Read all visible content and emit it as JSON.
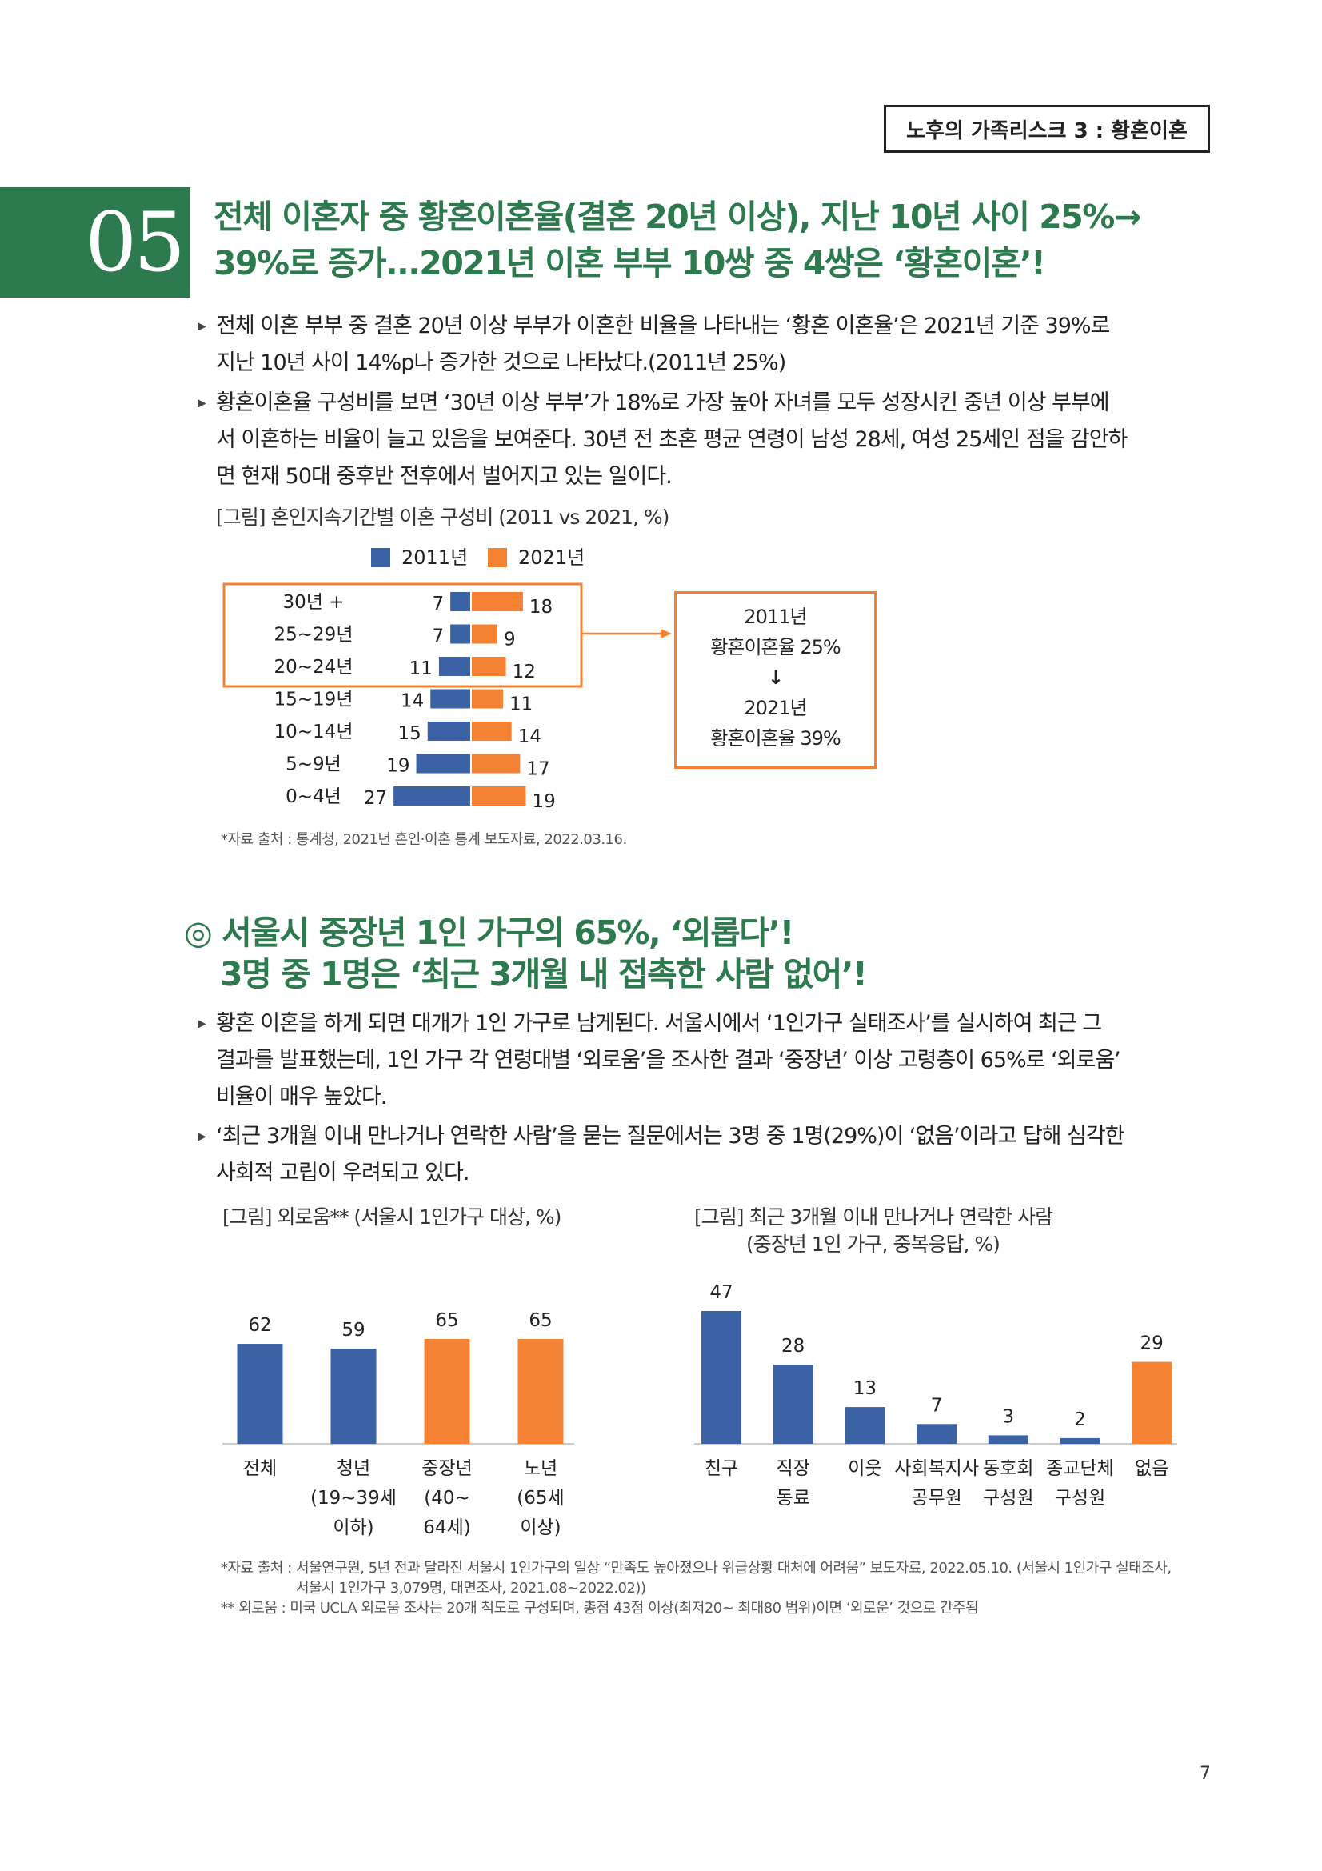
{
  "header": {
    "label": "노후의 가족리스크 3 : 황혼이혼"
  },
  "section1": {
    "number": "05",
    "title_line1": "전체 이혼자 중 황혼이혼율(결혼 20년 이상), 지난 10년 사이 25%→",
    "title_line2": "39%로 증가...2021년 이혼 부부 10쌍 중 4쌍은 ‘황혼이혼’!",
    "bullets": [
      [
        "전체 이혼 부부 중 결혼 20년 이상 부부가 이혼한 비율을 나타내는 ‘황혼 이혼율’은 2021년 기준 39%로",
        "지난 10년 사이 14%p나 증가한 것으로 나타났다.(2011년 25%)"
      ],
      [
        "황혼이혼율 구성비를 보면 ‘30년 이상 부부’가 18%로 가장 높아 자녀를 모두 성장시킨 중년 이상 부부에",
        "서 이혼하는 비율이 늘고 있음을 보여준다. 30년 전 초혼 평균 연령이 남성 28세, 여성 25세인 점을 감안하",
        "면 현재 50대 중후반 전후에서 벌어지고 있는 일이다."
      ]
    ],
    "chart_caption": "[그림] 혼인지속기간별 이혼 구성비 (2011 vs 2021, %)",
    "callout": {
      "line1": "2011년",
      "line2": "황혼이혼율 25%",
      "arrow": "↓",
      "line3": "2021년",
      "line4": "황혼이혼율 39%"
    },
    "source": "*자료 출처 : 통계청, 2021년 혼인·이혼 통계 보도자료, 2022.03.16."
  },
  "section2": {
    "title_line1": "◎ 서울시 중장년 1인 가구의 65%, ‘외롭다’!",
    "title_line2": "3명 중 1명은 ‘최근 3개월 내 접촉한 사람 없어’!",
    "bullets": [
      [
        "황혼 이혼을 하게 되면 대개가 1인 가구로 남게된다. 서울시에서 ‘1인가구 실태조사’를 실시하여 최근 그",
        "결과를 발표했는데, 1인 가구 각 연령대별 ‘외로움’을 조사한 결과 ‘중장년’ 이상 고령층이 65%로 ‘외로움’",
        "비율이 매우 높았다."
      ],
      [
        "‘최근 3개월 이내 만나거나 연락한 사람’을 묻는 질문에서는 3명 중 1명(29%)이 ‘없음’이라고 답해 심각한",
        "사회적 고립이 우려되고 있다."
      ]
    ],
    "chart2_caption": "[그림] 외로움** (서울시 1인가구 대상, %)",
    "chart3_caption_line1": "[그림] 최근 3개월 이내 만나거나 연락한 사람",
    "chart3_caption_line2": "(중장년 1인 가구, 중복응답, %)",
    "source_line1": "*자료 출처 : 서울연구원, 5년 전과 달라진 서울시 1인가구의 일상 “만족도 높아졌으나 위급상황 대처에 어려움” 보도자료, 2022.05.10. (서울시 1인가구 실태조사,",
    "source_line2": "서울시 1인가구 3,079명, 대면조사, 2021.08~2022.02))",
    "source_line3": "** 외로움 : 미국 UCLA 외로움 조사는 20개 척도로 구성되며, 총점 43점 이상(최저20~ 최대80 범위)이면 ‘외로운’ 것으로 간주됨"
  },
  "page_number": "7",
  "colors": {
    "blue": "#3a62a4",
    "orange": "#f58233",
    "green": "#2e7a4f"
  },
  "chart_data": [
    {
      "type": "bar",
      "orientation": "horizontal-diverging",
      "categories": [
        "30년 +",
        "25~29년",
        "20~24년",
        "15~19년",
        "10~14년",
        "5~9년",
        "0~4년"
      ],
      "series": [
        {
          "name": "2011년",
          "values": [
            7,
            7,
            11,
            14,
            15,
            19,
            27
          ]
        },
        {
          "name": "2021년",
          "values": [
            18,
            9,
            12,
            11,
            14,
            17,
            19
          ]
        }
      ],
      "legend": "top",
      "highlighted_categories": [
        "30년 +",
        "25~29년",
        "20~24년"
      ]
    },
    {
      "type": "bar",
      "categories": [
        "전체",
        "청년\n(19~39세\n이하)",
        "중장년\n(40~\n64세)",
        "노년\n(65세\n이상)"
      ],
      "values": [
        62,
        59,
        65,
        65
      ],
      "colors": [
        "#3a62a4",
        "#3a62a4",
        "#f58233",
        "#f58233"
      ]
    },
    {
      "type": "bar",
      "categories": [
        "친구",
        "직장\n동료",
        "이웃",
        "사회복지사\n공무원",
        "동호회\n구성원",
        "종교단체\n구성원",
        "없음"
      ],
      "values": [
        47,
        28,
        13,
        7,
        3,
        2,
        29
      ],
      "colors": [
        "#3a62a4",
        "#3a62a4",
        "#3a62a4",
        "#3a62a4",
        "#3a62a4",
        "#3a62a4",
        "#f58233"
      ]
    }
  ]
}
